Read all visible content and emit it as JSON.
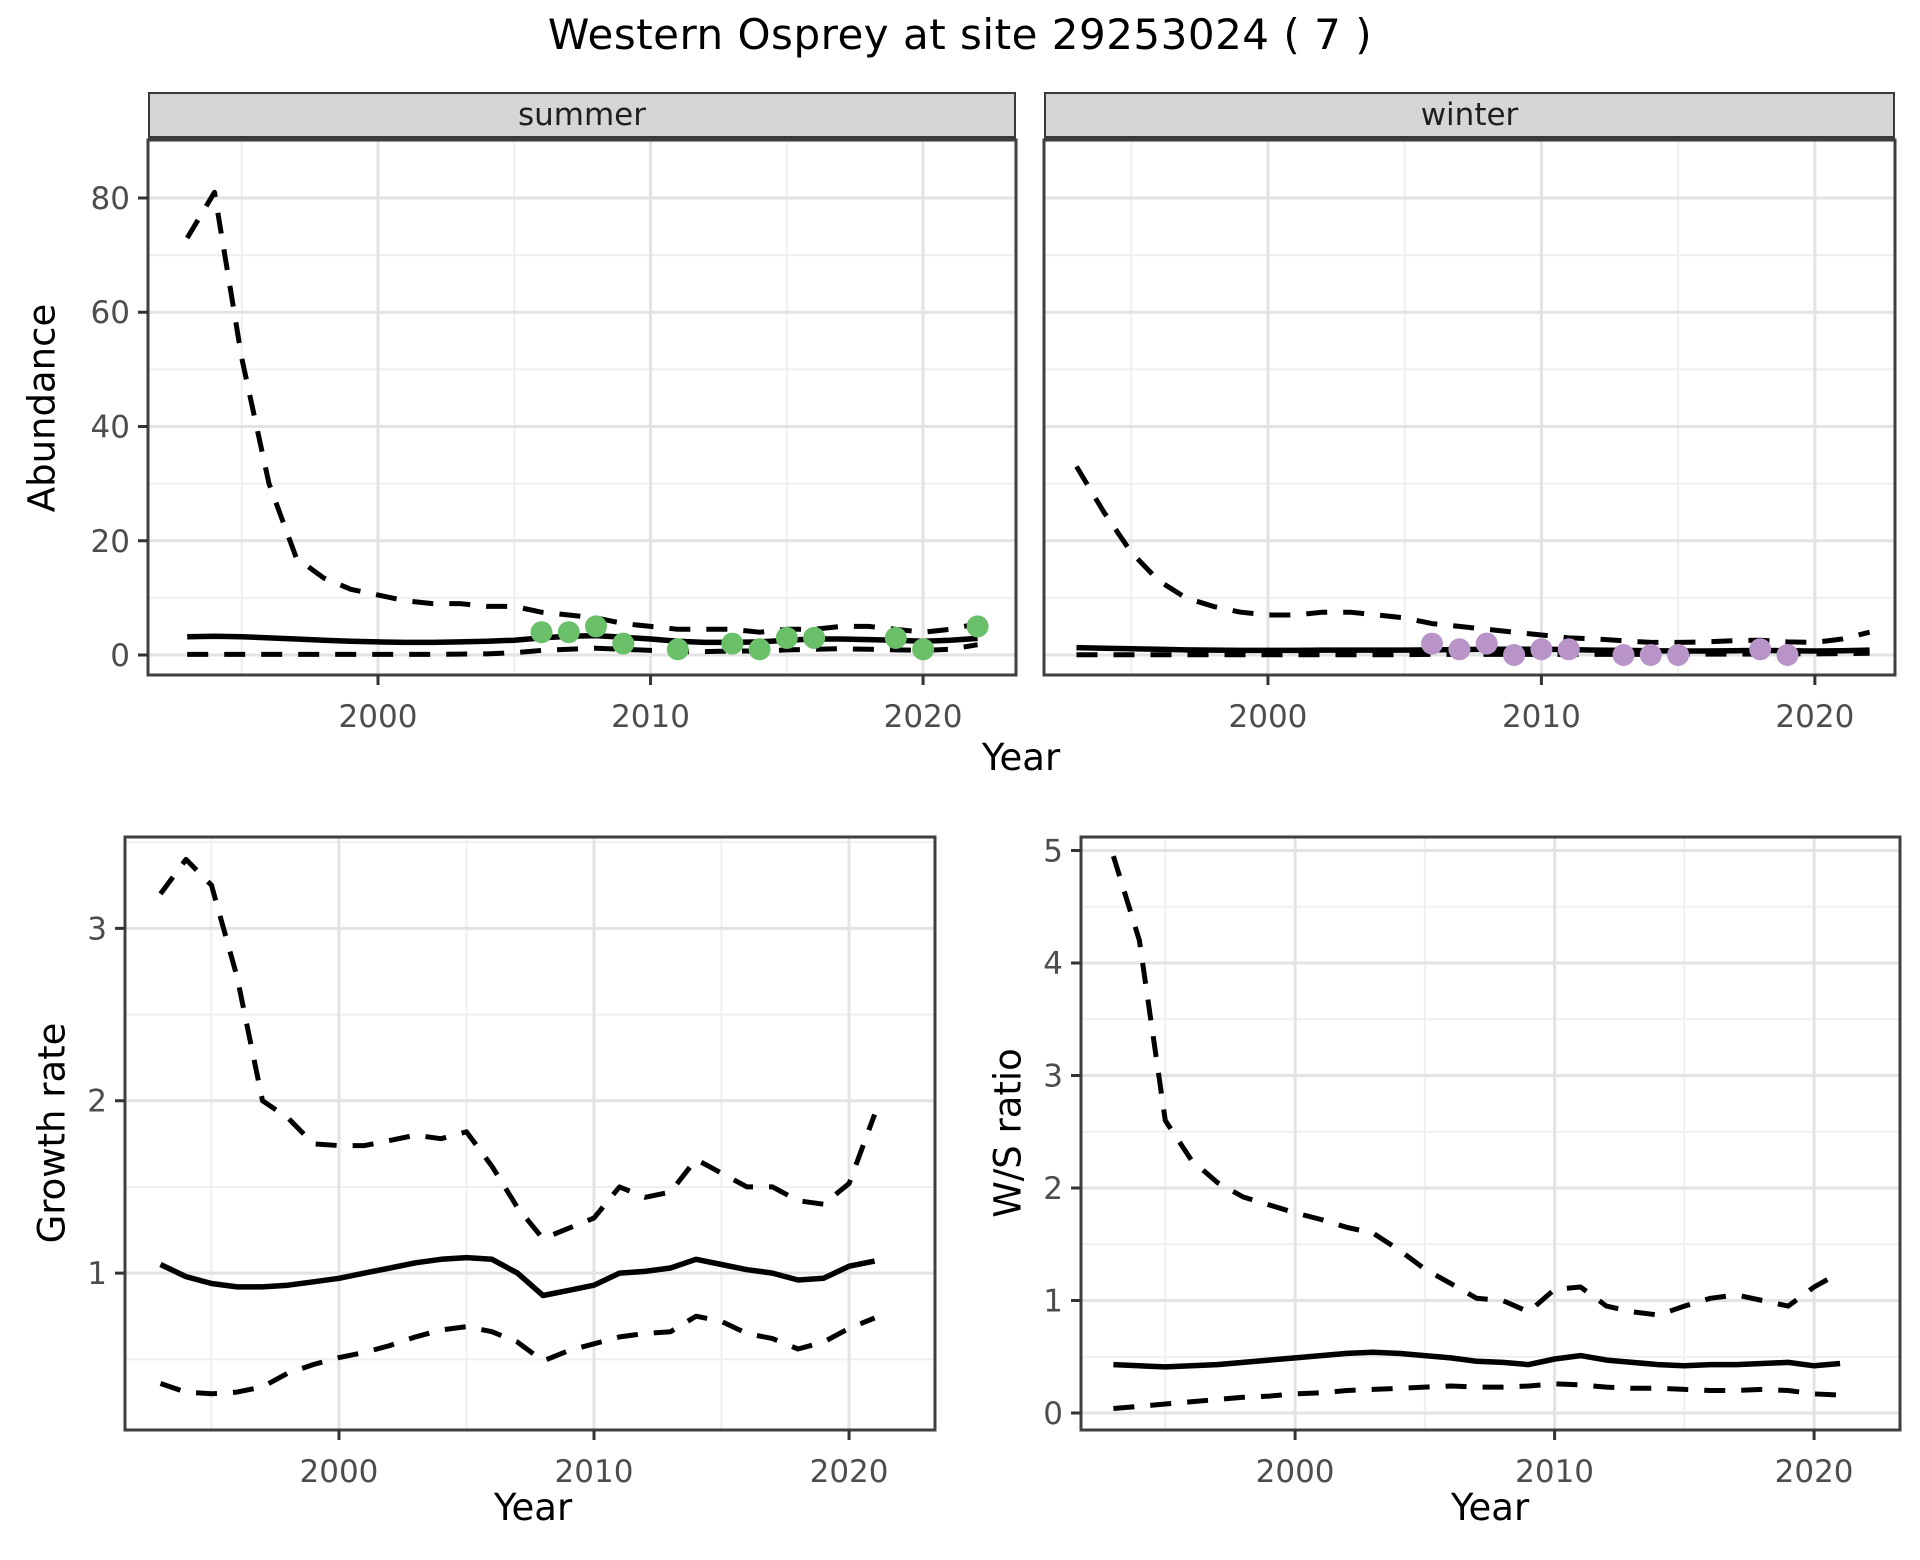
{
  "title": "Western Osprey at site 29253024 ( 7 )",
  "colors": {
    "summer_points": "#6abf69",
    "winter_points": "#b994c8",
    "line": "#000000",
    "grid_major": "#e3e3e3",
    "grid_minor": "#efefef",
    "axis_text": "#4d4d4d",
    "panel_border": "#3f3f3f",
    "strip_bg": "#d6d6d6"
  },
  "top_row": {
    "strip_labels": [
      "summer",
      "winter"
    ],
    "ylabel": "Abundance",
    "xlabel": "Year"
  },
  "bottom_row": {
    "left": {
      "ylabel": "Growth rate",
      "xlabel": "Year"
    },
    "right": {
      "ylabel": "W/S ratio",
      "xlabel": "Year"
    }
  },
  "chart_data": [
    {
      "id": "abundance-summer",
      "type": "line",
      "facet": "summer",
      "xlabel": "Year",
      "ylabel": "Abundance",
      "xlim": [
        1991.56,
        2023.41
      ],
      "ylim": [
        -3.5,
        90.15
      ],
      "xticks": [
        2000,
        2010,
        2020
      ],
      "xminor": [
        1995,
        2005,
        2015
      ],
      "yticks": [
        0,
        20,
        40,
        60,
        80
      ],
      "yminor": [
        10,
        30,
        50,
        70,
        90
      ],
      "grid": true,
      "legend": "none",
      "years": [
        1993,
        1994,
        1995,
        1996,
        1997,
        1998,
        1999,
        2000,
        2001,
        2002,
        2003,
        2004,
        2005,
        2006,
        2007,
        2008,
        2009,
        2010,
        2011,
        2012,
        2013,
        2014,
        2015,
        2016,
        2017,
        2018,
        2019,
        2020,
        2021,
        2022
      ],
      "series": [
        {
          "name": "upper_ci",
          "style": "dashed",
          "values": [
            73,
            81,
            52,
            30,
            17,
            13.5,
            11.5,
            10.5,
            9.5,
            9,
            9,
            8.5,
            8.5,
            7.5,
            7,
            6.5,
            5.5,
            5,
            4.5,
            4.5,
            4.5,
            4,
            4.5,
            4.5,
            5,
            5,
            4.5,
            4,
            4.5,
            5.5
          ]
        },
        {
          "name": "mean",
          "style": "solid",
          "values": [
            3.2,
            3.3,
            3.2,
            3.0,
            2.8,
            2.6,
            2.4,
            2.3,
            2.2,
            2.2,
            2.3,
            2.4,
            2.6,
            3.0,
            3.3,
            3.4,
            3.1,
            2.8,
            2.4,
            2.2,
            2.2,
            2.3,
            2.6,
            2.8,
            2.8,
            2.7,
            2.6,
            2.4,
            2.6,
            2.9
          ]
        },
        {
          "name": "lower_ci",
          "style": "dashed",
          "values": [
            0.1,
            0.1,
            0.1,
            0.1,
            0.1,
            0.1,
            0.1,
            0.1,
            0.1,
            0.1,
            0.15,
            0.2,
            0.4,
            0.8,
            1.0,
            1.2,
            1.0,
            0.8,
            0.6,
            0.6,
            0.7,
            0.7,
            0.9,
            1.0,
            1.1,
            1.0,
            0.9,
            0.8,
            1.0,
            1.8
          ]
        }
      ],
      "points": {
        "name": "observed-counts",
        "color": "#6abf69",
        "years": [
          2006,
          2007,
          2008,
          2009,
          2011,
          2013,
          2014,
          2015,
          2016,
          2019,
          2020,
          2022
        ],
        "values": [
          4,
          4,
          5,
          2,
          1,
          2,
          1,
          3,
          3,
          3,
          1,
          5
        ]
      }
    },
    {
      "id": "abundance-winter",
      "type": "line",
      "facet": "winter",
      "xlabel": "Year",
      "ylabel": "Abundance",
      "xlim": [
        1991.81,
        2022.93
      ],
      "ylim": [
        -3.5,
        90.15
      ],
      "xticks": [
        2000,
        2010,
        2020
      ],
      "xminor": [
        1995,
        2005,
        2015
      ],
      "yticks": [
        0,
        20,
        40,
        60,
        80
      ],
      "yminor": [
        10,
        30,
        50,
        70,
        90
      ],
      "grid": true,
      "legend": "none",
      "years": [
        1993,
        1994,
        1995,
        1996,
        1997,
        1998,
        1999,
        2000,
        2001,
        2002,
        2003,
        2004,
        2005,
        2006,
        2007,
        2008,
        2009,
        2010,
        2011,
        2012,
        2013,
        2014,
        2015,
        2016,
        2017,
        2018,
        2019,
        2020,
        2021,
        2022
      ],
      "series": [
        {
          "name": "upper_ci",
          "style": "dashed",
          "values": [
            33,
            25,
            18,
            13,
            10,
            8.5,
            7.5,
            7,
            7,
            7.5,
            7.5,
            7,
            6.5,
            5.5,
            5,
            4.5,
            4,
            3.5,
            3,
            2.8,
            2.5,
            2.2,
            2.2,
            2.3,
            2.5,
            2.6,
            2.3,
            2.2,
            2.8,
            4
          ]
        },
        {
          "name": "mean",
          "style": "solid",
          "values": [
            1.3,
            1.2,
            1.1,
            1.0,
            0.9,
            0.85,
            0.8,
            0.8,
            0.8,
            0.85,
            0.85,
            0.85,
            0.85,
            0.9,
            0.95,
            1.0,
            1.0,
            1.0,
            0.95,
            0.85,
            0.8,
            0.75,
            0.7,
            0.7,
            0.75,
            0.8,
            0.75,
            0.7,
            0.75,
            0.85
          ]
        },
        {
          "name": "lower_ci",
          "style": "dashed",
          "values": [
            0.05,
            0.05,
            0.05,
            0.05,
            0.05,
            0.05,
            0.05,
            0.05,
            0.05,
            0.05,
            0.05,
            0.05,
            0.05,
            0.1,
            0.1,
            0.1,
            0.1,
            0.1,
            0.1,
            0.1,
            0.1,
            0.1,
            0.15,
            0.15,
            0.15,
            0.15,
            0.2,
            0.2,
            0.25,
            0.3
          ]
        }
      ],
      "points": {
        "name": "observed-counts",
        "color": "#b994c8",
        "years": [
          2006,
          2007,
          2008,
          2009,
          2010,
          2011,
          2013,
          2014,
          2015,
          2018,
          2019
        ],
        "values": [
          2,
          1,
          2,
          0,
          1,
          1,
          0,
          0,
          0,
          1,
          0
        ]
      }
    },
    {
      "id": "growth-rate",
      "type": "line",
      "facet": null,
      "xlabel": "Year",
      "ylabel": "Growth rate",
      "xlim": [
        1991.61,
        2023.37
      ],
      "ylim": [
        0.09,
        3.53
      ],
      "xticks": [
        2000,
        2010,
        2020
      ],
      "xminor": [
        1995,
        2005,
        2015
      ],
      "yticks": [
        1,
        2,
        3
      ],
      "yminor": [
        0.5,
        1.5,
        2.5,
        3.5
      ],
      "grid": true,
      "legend": "none",
      "years": [
        1993,
        1994,
        1995,
        1996,
        1997,
        1998,
        1999,
        2000,
        2001,
        2002,
        2003,
        2004,
        2005,
        2006,
        2007,
        2008,
        2009,
        2010,
        2011,
        2012,
        2013,
        2014,
        2015,
        2016,
        2017,
        2018,
        2019,
        2020,
        2021
      ],
      "series": [
        {
          "name": "upper_ci",
          "style": "dashed",
          "values": [
            3.2,
            3.4,
            3.25,
            2.72,
            2.0,
            1.9,
            1.75,
            1.74,
            1.74,
            1.77,
            1.8,
            1.78,
            1.82,
            1.62,
            1.38,
            1.2,
            1.26,
            1.32,
            1.5,
            1.44,
            1.47,
            1.66,
            1.58,
            1.5,
            1.5,
            1.42,
            1.4,
            1.52,
            1.92
          ]
        },
        {
          "name": "mean",
          "style": "solid",
          "values": [
            1.05,
            0.98,
            0.94,
            0.92,
            0.92,
            0.93,
            0.95,
            0.97,
            1.0,
            1.03,
            1.06,
            1.08,
            1.09,
            1.08,
            1.0,
            0.87,
            0.9,
            0.93,
            1.0,
            1.01,
            1.03,
            1.08,
            1.05,
            1.02,
            1.0,
            0.96,
            0.97,
            1.04,
            1.07
          ]
        },
        {
          "name": "lower_ci",
          "style": "dashed",
          "values": [
            0.36,
            0.31,
            0.3,
            0.31,
            0.34,
            0.42,
            0.47,
            0.51,
            0.54,
            0.58,
            0.63,
            0.67,
            0.69,
            0.66,
            0.6,
            0.49,
            0.55,
            0.59,
            0.63,
            0.65,
            0.66,
            0.75,
            0.72,
            0.65,
            0.62,
            0.56,
            0.6,
            0.68,
            0.74
          ]
        }
      ],
      "points": null
    },
    {
      "id": "ws-ratio",
      "type": "line",
      "facet": null,
      "xlabel": "Year",
      "ylabel": "W/S ratio",
      "xlim": [
        1991.75,
        2023.31
      ],
      "ylim": [
        -0.151,
        5.12
      ],
      "xticks": [
        2000,
        2010,
        2020
      ],
      "xminor": [
        1995,
        2005,
        2015
      ],
      "yticks": [
        0,
        1,
        2,
        3,
        4,
        5
      ],
      "yminor": [
        0.5,
        1.5,
        2.5,
        3.5,
        4.5
      ],
      "grid": true,
      "legend": "none",
      "years": [
        1993,
        1994,
        1995,
        1996,
        1997,
        1998,
        1999,
        2000,
        2001,
        2002,
        2003,
        2004,
        2005,
        2006,
        2007,
        2008,
        2009,
        2010,
        2011,
        2012,
        2013,
        2014,
        2015,
        2016,
        2017,
        2018,
        2019,
        2020,
        2021
      ],
      "series": [
        {
          "name": "upper_ci",
          "style": "dashed",
          "values": [
            4.95,
            4.2,
            2.6,
            2.25,
            2.05,
            1.92,
            1.85,
            1.78,
            1.72,
            1.65,
            1.6,
            1.45,
            1.28,
            1.15,
            1.02,
            1.0,
            0.9,
            1.1,
            1.12,
            0.95,
            0.9,
            0.87,
            0.95,
            1.02,
            1.05,
            1.0,
            0.95,
            1.12,
            1.25
          ]
        },
        {
          "name": "mean",
          "style": "solid",
          "values": [
            0.43,
            0.42,
            0.41,
            0.42,
            0.43,
            0.45,
            0.47,
            0.49,
            0.51,
            0.53,
            0.54,
            0.53,
            0.51,
            0.49,
            0.46,
            0.45,
            0.43,
            0.48,
            0.51,
            0.47,
            0.45,
            0.43,
            0.42,
            0.43,
            0.43,
            0.44,
            0.45,
            0.42,
            0.44
          ]
        },
        {
          "name": "lower_ci",
          "style": "dashed",
          "values": [
            0.04,
            0.06,
            0.08,
            0.1,
            0.12,
            0.14,
            0.15,
            0.17,
            0.18,
            0.2,
            0.21,
            0.22,
            0.23,
            0.24,
            0.23,
            0.23,
            0.24,
            0.26,
            0.25,
            0.23,
            0.22,
            0.22,
            0.21,
            0.2,
            0.2,
            0.21,
            0.2,
            0.17,
            0.16
          ]
        }
      ],
      "points": null
    }
  ]
}
